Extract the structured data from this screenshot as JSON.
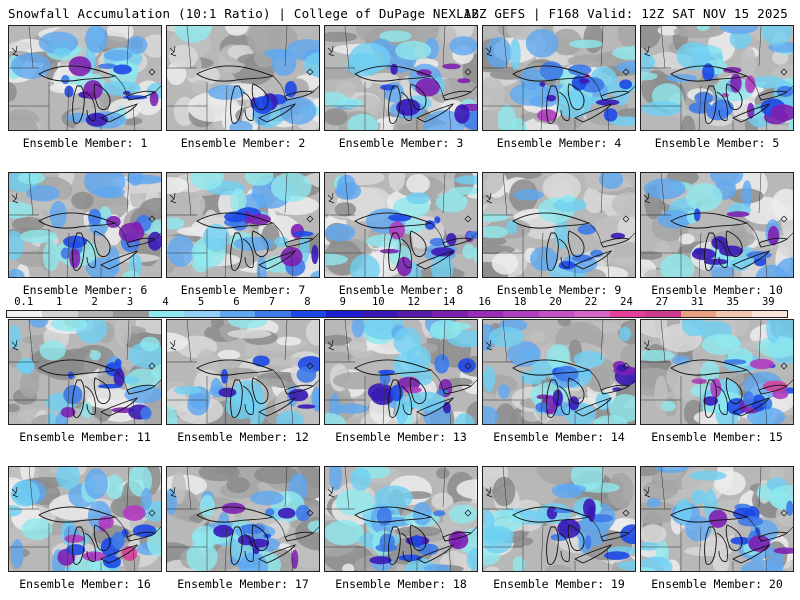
{
  "header": {
    "title_left": "Snowfall Accumulation (10:1 Ratio) | College of DuPage NEXLAB",
    "title_right": "12Z GEFS | F168 Valid: 12Z SAT NOV 15 2025"
  },
  "colorbar": {
    "labels": [
      "0.1",
      "1",
      "2",
      "3",
      "4",
      "5",
      "6",
      "7",
      "8",
      "9",
      "10",
      "12",
      "14",
      "16",
      "18",
      "20",
      "22",
      "24",
      "27",
      "31",
      "35",
      "39"
    ],
    "colors": [
      "#f0f0f0",
      "#d2d2d2",
      "#b4b4b4",
      "#969696",
      "#8ee9ee",
      "#92cef6",
      "#5fa8f0",
      "#3e7ae8",
      "#1d48e6",
      "#1b1ed0",
      "#3a18b6",
      "#5a1aa8",
      "#7d20b0",
      "#9a2cb8",
      "#b03cc0",
      "#c650c6",
      "#d665c8",
      "#e2409a",
      "#cc3a8a",
      "#e8a080",
      "#f0c8b0",
      "#f8e4d8"
    ]
  },
  "panels": [
    {
      "label": "Ensemble Member: 1",
      "intensity": 0.6
    },
    {
      "label": "Ensemble Member: 2",
      "intensity": 0.2
    },
    {
      "label": "Ensemble Member: 3",
      "intensity": 0.5
    },
    {
      "label": "Ensemble Member: 4",
      "intensity": 0.7
    },
    {
      "label": "Ensemble Member: 5",
      "intensity": 0.8
    },
    {
      "label": "Ensemble Member: 6",
      "intensity": 0.6
    },
    {
      "label": "Ensemble Member: 7",
      "intensity": 0.6
    },
    {
      "label": "Ensemble Member: 8",
      "intensity": 0.6
    },
    {
      "label": "Ensemble Member: 9",
      "intensity": 0.2
    },
    {
      "label": "Ensemble Member: 10",
      "intensity": 0.5
    },
    {
      "label": "Ensemble Member: 11",
      "intensity": 0.5
    },
    {
      "label": "Ensemble Member: 12",
      "intensity": 0.3
    },
    {
      "label": "Ensemble Member: 13",
      "intensity": 0.7
    },
    {
      "label": "Ensemble Member: 14",
      "intensity": 0.7
    },
    {
      "label": "Ensemble Member: 15",
      "intensity": 0.8
    },
    {
      "label": "Ensemble Member: 16",
      "intensity": 0.8
    },
    {
      "label": "Ensemble Member: 17",
      "intensity": 0.6
    },
    {
      "label": "Ensemble Member: 18",
      "intensity": 0.6
    },
    {
      "label": "Ensemble Member: 19",
      "intensity": 0.6
    },
    {
      "label": "Ensemble Member: 20",
      "intensity": 0.6
    }
  ]
}
